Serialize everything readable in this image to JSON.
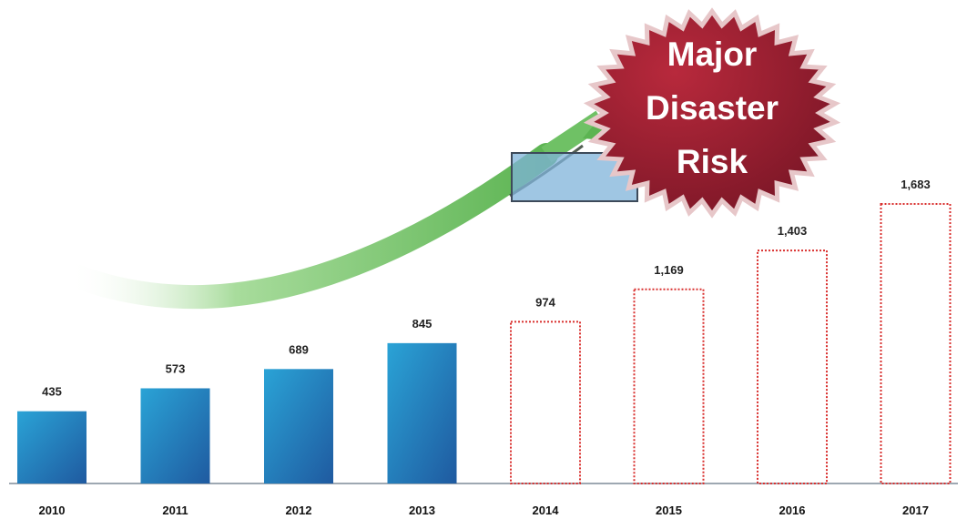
{
  "chart_data": {
    "type": "bar",
    "categories": [
      "2010",
      "2011",
      "2012",
      "2013",
      "2014",
      "2015",
      "2016",
      "2017"
    ],
    "values": [
      435,
      573,
      689,
      845,
      974,
      1169,
      1403,
      1683
    ],
    "value_labels": [
      "435",
      "573",
      "689",
      "845",
      "974",
      "1,169",
      "1,403",
      "1,683"
    ],
    "bar_style": [
      "actual",
      "actual",
      "actual",
      "actual",
      "projected",
      "projected",
      "projected",
      "projected"
    ],
    "title": "",
    "xlabel": "",
    "ylabel": "",
    "ylim": [
      0,
      1683
    ],
    "grid": false,
    "legend": "none",
    "annotation": {
      "badge_lines": [
        "Major",
        "Disaster",
        "Risk"
      ],
      "arrow": "rising green arrow pointing to badge"
    }
  },
  "colors": {
    "actual_bar_top": "#2aa3d6",
    "actual_bar_bottom": "#1f5aa0",
    "projected_outline": "#d9302f",
    "badge": "#9b2233",
    "arrow": "#6fc165",
    "highlight_box": "#7fb3d9"
  }
}
